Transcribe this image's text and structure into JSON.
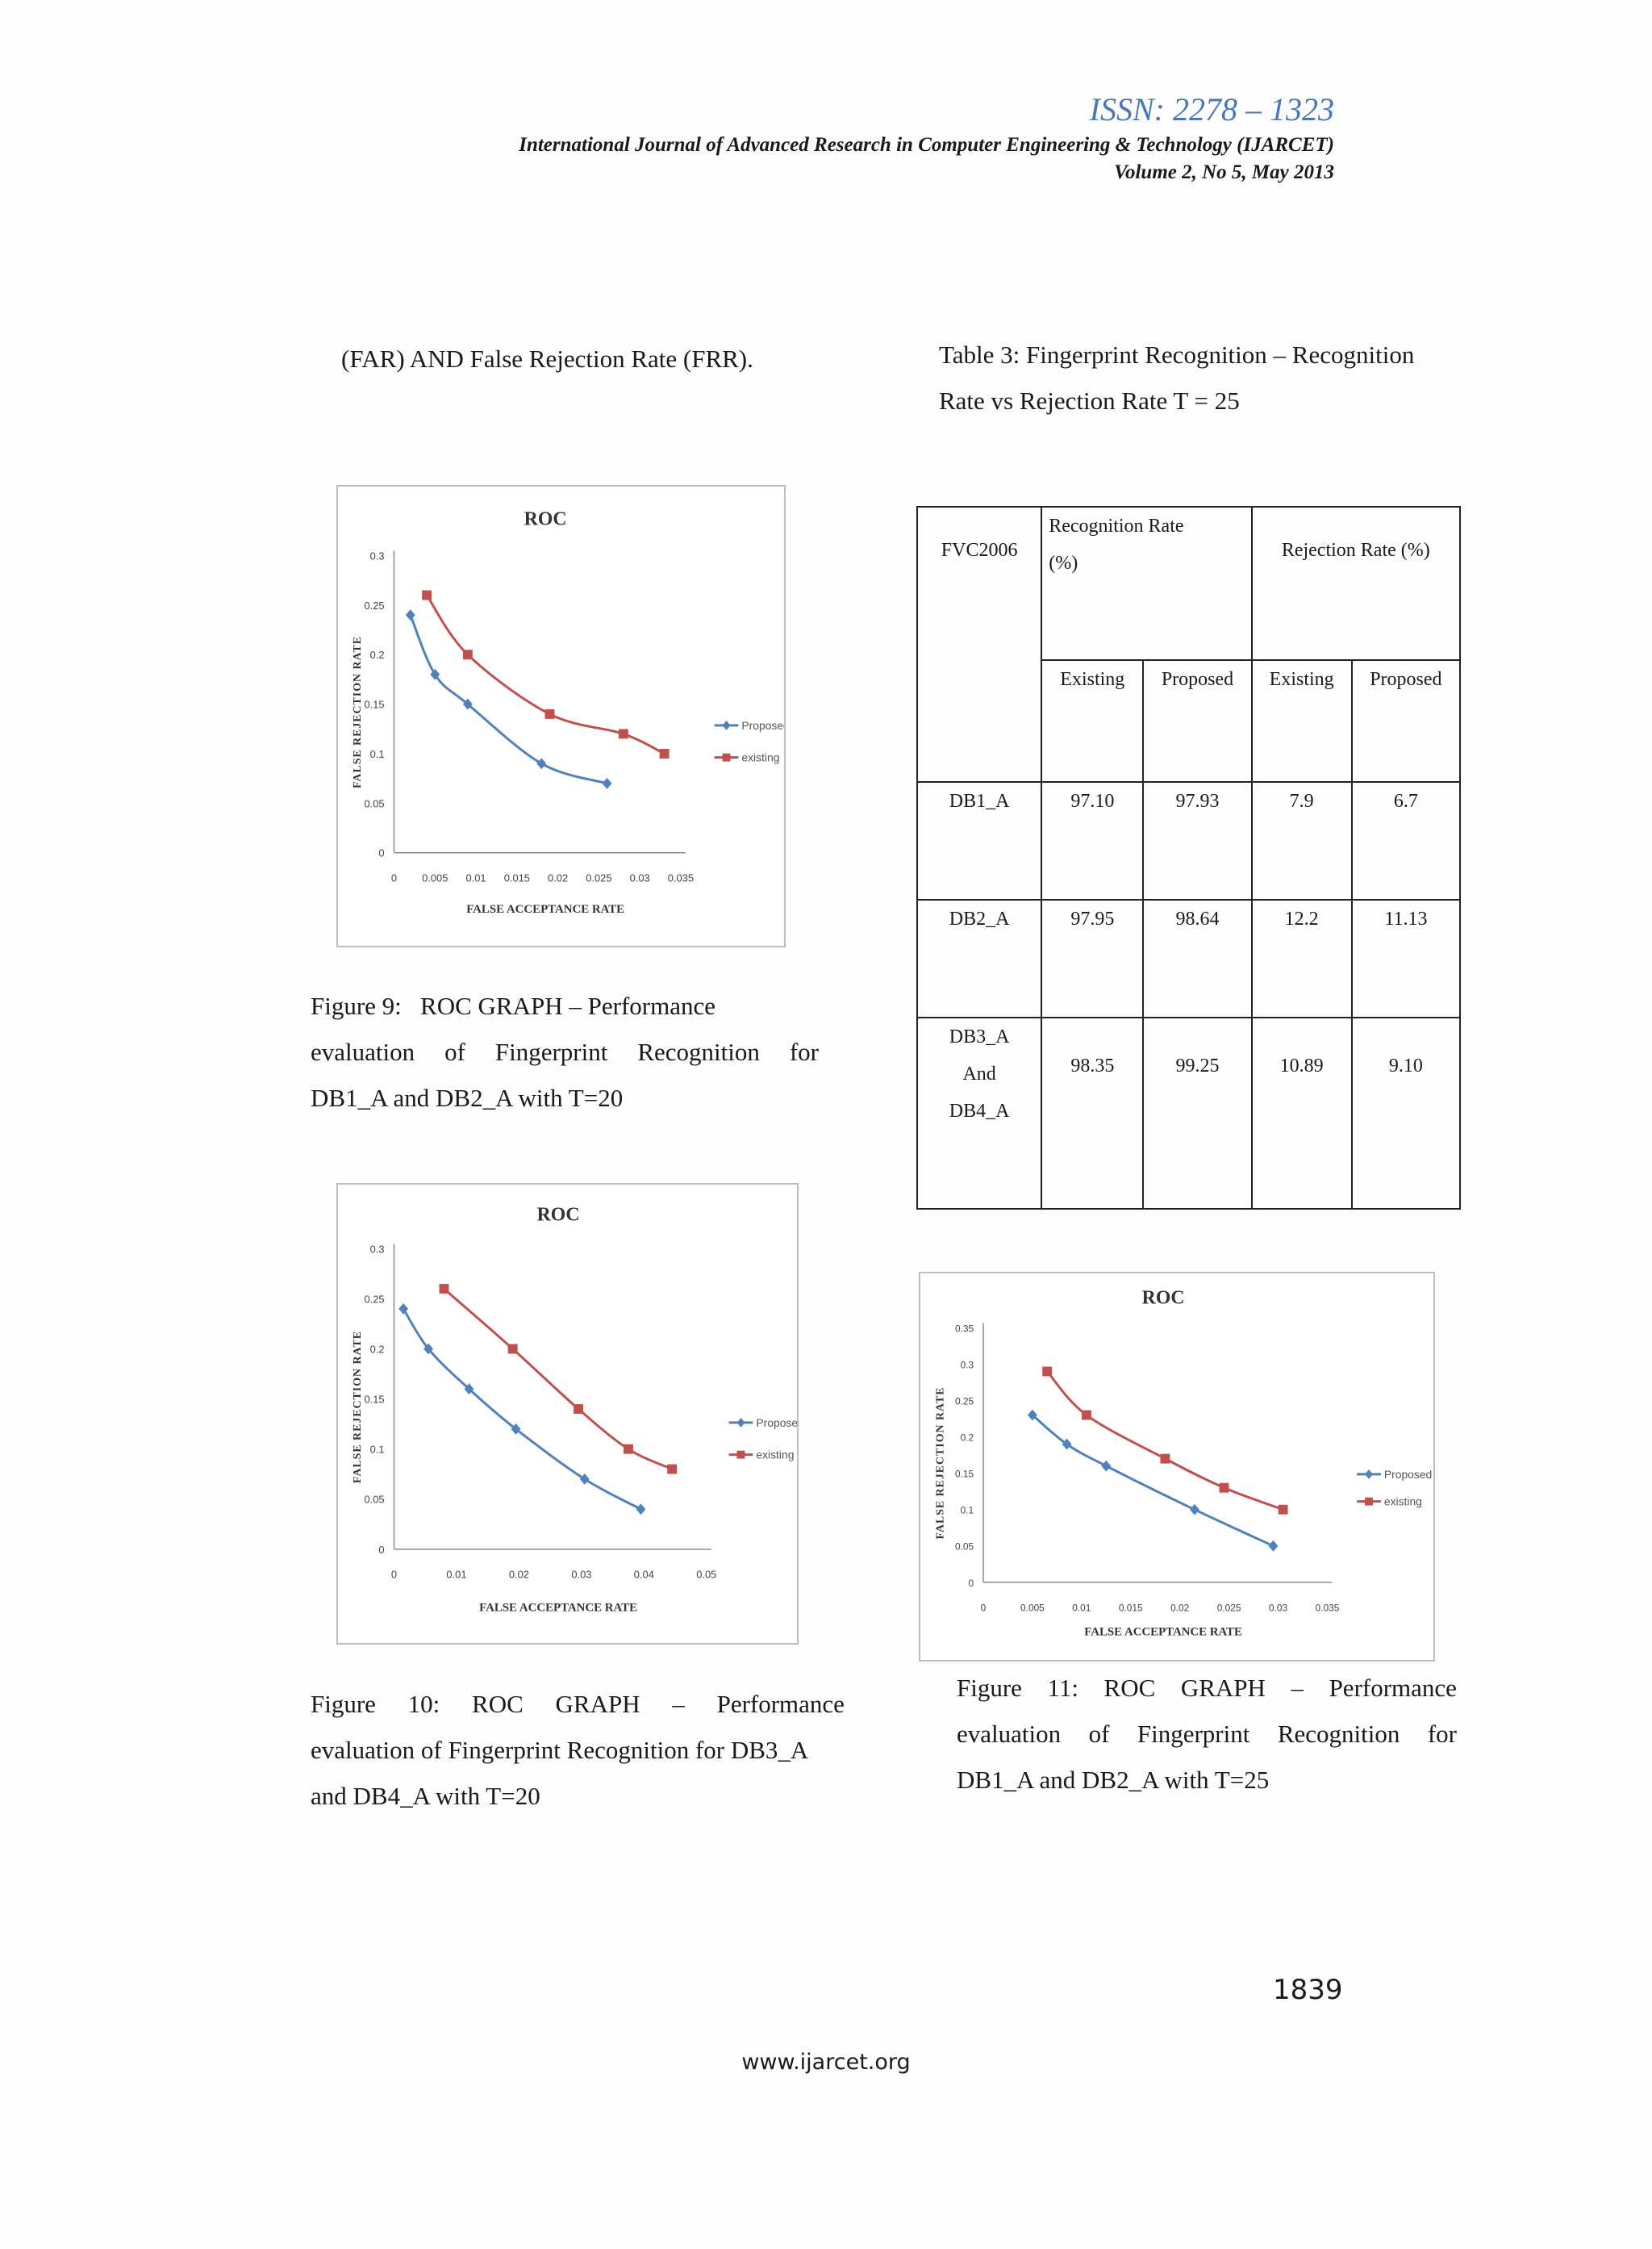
{
  "header": {
    "issn": "ISSN: 2278 – 1323",
    "journal": "International Journal of Advanced Research in Computer Engineering & Technology (IJARCET)",
    "volume": "Volume 2, No 5, May 2013"
  },
  "text": {
    "intro_line": "(FAR) AND False Rejection Rate (FRR).",
    "table_caption_1": "Table 3: Fingerprint Recognition – Recognition",
    "table_caption_2": "Rate vs Rejection Rate T = 25",
    "fig9_caption_1": "Figure 9:   ROC GRAPH – Performance",
    "fig9_caption_2": "evaluation of Fingerprint Recognition for",
    "fig9_caption_3": "DB1_A and DB2_A with T=20",
    "fig10_caption_1": "Figure 10:    ROC GRAPH – Performance",
    "fig10_caption_2": "evaluation of Fingerprint Recognition for DB3_A",
    "fig10_caption_3": "and DB4_A with T=20",
    "fig11_caption_1": "Figure 11: ROC GRAPH – Performance",
    "fig11_caption_2": "evaluation of Fingerprint Recognition for",
    "fig11_caption_3": "DB1_A and DB2_A with T=25"
  },
  "table": {
    "corner": "FVC2006",
    "group1": "Recognition Rate (%)",
    "group2": "Rejection Rate (%)",
    "sub": [
      "Existing",
      "Proposed",
      "Existing",
      "Proposed"
    ],
    "rows": [
      {
        "name": "DB1_A",
        "values": [
          "97.10",
          "97.93",
          "7.9",
          "6.7"
        ]
      },
      {
        "name": "DB2_A",
        "values": [
          "97.95",
          "98.64",
          "12.2",
          "11.13"
        ]
      },
      {
        "name": "DB3_A And DB4_A",
        "name_lines": [
          "DB3_A",
          "And",
          "DB4_A"
        ],
        "values": [
          "98.35",
          "99.25",
          "10.89",
          "9.10"
        ]
      }
    ]
  },
  "colors": {
    "proposed": "#4f81bd",
    "existing": "#c0504d",
    "axis": "#888888",
    "issn": "#4a78b5"
  },
  "chart_data": [
    {
      "type": "line",
      "title": "ROC",
      "xlabel": "FALSE ACCEPTANCE RATE",
      "ylabel": "FALSE REJECTION RATE",
      "xlim": [
        0,
        0.035
      ],
      "ylim": [
        0,
        0.3
      ],
      "xticks": [
        "0",
        "0.005",
        "0.01",
        "0.015",
        "0.02",
        "0.025",
        "0.03",
        "0.035"
      ],
      "yticks": [
        "0",
        "0.05",
        "0.1",
        "0.15",
        "0.2",
        "0.25",
        "0.3"
      ],
      "legend": "right",
      "series": [
        {
          "name": "Proposed",
          "color": "#4f81bd",
          "marker": "diamond",
          "x": [
            0.002,
            0.005,
            0.009,
            0.018,
            0.026
          ],
          "y": [
            0.24,
            0.18,
            0.15,
            0.09,
            0.07
          ]
        },
        {
          "name": "existing",
          "color": "#c0504d",
          "marker": "square",
          "x": [
            0.004,
            0.009,
            0.019,
            0.028,
            0.033
          ],
          "y": [
            0.26,
            0.2,
            0.14,
            0.12,
            0.1
          ]
        }
      ]
    },
    {
      "type": "line",
      "title": "ROC",
      "xlabel": "FALSE ACCEPTANCE RATE",
      "ylabel": "FALSE REJECTION RATE",
      "xlim": [
        0,
        0.05
      ],
      "ylim": [
        0,
        0.3
      ],
      "xticks": [
        "0",
        "0.01",
        "0.02",
        "0.03",
        "0.04",
        "0.05"
      ],
      "yticks": [
        "0",
        "0.05",
        "0.1",
        "0.15",
        "0.2",
        "0.25",
        "0.3"
      ],
      "legend": "right",
      "series": [
        {
          "name": "Proposed",
          "color": "#4f81bd",
          "marker": "diamond",
          "x": [
            0.0015,
            0.0055,
            0.012,
            0.0195,
            0.0305,
            0.0395
          ],
          "y": [
            0.24,
            0.2,
            0.16,
            0.12,
            0.07,
            0.04
          ]
        },
        {
          "name": "existing",
          "color": "#c0504d",
          "marker": "square",
          "x": [
            0.008,
            0.019,
            0.0295,
            0.0375,
            0.0445
          ],
          "y": [
            0.26,
            0.2,
            0.14,
            0.1,
            0.08
          ]
        }
      ]
    },
    {
      "type": "line",
      "title": "ROC",
      "xlabel": "FALSE ACCEPTANCE RATE",
      "ylabel": "FALSE REJECTION RATE",
      "xlim": [
        0,
        0.035
      ],
      "ylim": [
        0,
        0.35
      ],
      "xticks": [
        "0",
        "0.005",
        "0.01",
        "0.015",
        "0.02",
        "0.025",
        "0.03",
        "0.035"
      ],
      "yticks": [
        "0",
        "0.05",
        "0.1",
        "0.15",
        "0.2",
        "0.25",
        "0.3",
        "0.35"
      ],
      "legend": "right",
      "series": [
        {
          "name": "Proposed",
          "color": "#4f81bd",
          "marker": "diamond",
          "x": [
            0.005,
            0.0085,
            0.0125,
            0.0215,
            0.0295
          ],
          "y": [
            0.23,
            0.19,
            0.16,
            0.1,
            0.05
          ]
        },
        {
          "name": "existing",
          "color": "#c0504d",
          "marker": "square",
          "x": [
            0.0065,
            0.0105,
            0.0185,
            0.0245,
            0.0305
          ],
          "y": [
            0.29,
            0.23,
            0.17,
            0.13,
            0.1
          ]
        }
      ]
    }
  ]
}
